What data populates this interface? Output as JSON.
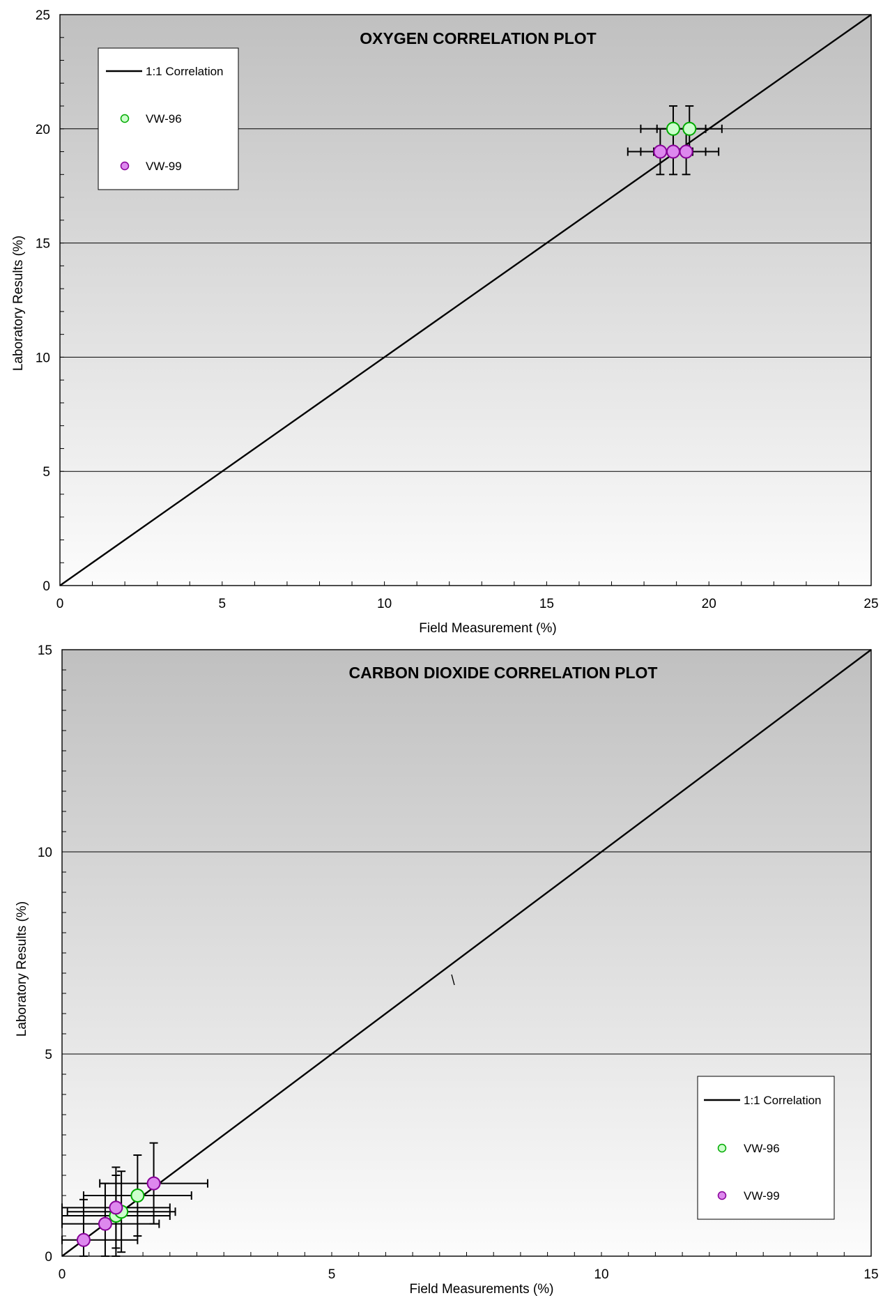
{
  "chart_data": [
    {
      "type": "scatter",
      "title": "OXYGEN CORRELATION PLOT",
      "xlabel": "Field Measurement (%)",
      "ylabel": "Laboratory Results (%)",
      "xlim": [
        0,
        25
      ],
      "ylim": [
        0,
        25
      ],
      "xticks": [
        "0",
        "5",
        "10",
        "15",
        "20",
        "25"
      ],
      "yticks": [
        "0",
        "5",
        "10",
        "15",
        "20",
        "25"
      ],
      "grid": "horizontal major lines",
      "legend_placement": "top-left",
      "legend": [
        "1:1 Correlation",
        "VW-96",
        "VW-99"
      ],
      "reference_line": {
        "name": "1:1 Correlation",
        "from": [
          0,
          0
        ],
        "to": [
          25,
          25
        ]
      },
      "series": [
        {
          "name": "VW-96",
          "color": "#ccffcc",
          "edge": "#00aa00",
          "points": [
            {
              "x": 18.9,
              "y": 20.0,
              "x_err": 1.0,
              "y_err": 1.0
            },
            {
              "x": 19.4,
              "y": 20.0,
              "x_err": 1.0,
              "y_err": 1.0
            }
          ]
        },
        {
          "name": "VW-99",
          "color": "#dd88ee",
          "edge": "#880099",
          "points": [
            {
              "x": 18.5,
              "y": 19.0,
              "x_err": 1.0,
              "y_err": 1.0
            },
            {
              "x": 18.9,
              "y": 19.0,
              "x_err": 1.0,
              "y_err": 1.0
            },
            {
              "x": 19.3,
              "y": 19.0,
              "x_err": 1.0,
              "y_err": 1.0
            }
          ]
        }
      ]
    },
    {
      "type": "scatter",
      "title": "CARBON DIOXIDE CORRELATION PLOT",
      "xlabel": "Field Measurements (%)",
      "ylabel": "Laboratory Results (%)",
      "xlim": [
        0,
        15
      ],
      "ylim": [
        0,
        15
      ],
      "xticks": [
        "0",
        "5",
        "10",
        "15"
      ],
      "yticks": [
        "0",
        "5",
        "10",
        "15"
      ],
      "grid": "horizontal major lines",
      "legend_placement": "bottom-right",
      "legend": [
        "1:1 Correlation",
        "VW-96",
        "VW-99"
      ],
      "reference_line": {
        "name": "1:1 Correlation",
        "from": [
          0,
          0
        ],
        "to": [
          15,
          15
        ]
      },
      "series": [
        {
          "name": "VW-96",
          "color": "#ccffcc",
          "edge": "#00aa00",
          "points": [
            {
              "x": 1.0,
              "y": 1.0,
              "x_err": 1.0,
              "y_err": 1.0
            },
            {
              "x": 1.1,
              "y": 1.1,
              "x_err": 1.0,
              "y_err": 1.0
            },
            {
              "x": 1.4,
              "y": 1.5,
              "x_err": 1.0,
              "y_err": 1.0
            }
          ]
        },
        {
          "name": "VW-99",
          "color": "#dd88ee",
          "edge": "#880099",
          "points": [
            {
              "x": 0.4,
              "y": 0.4,
              "x_err": 1.0,
              "y_err": 1.0
            },
            {
              "x": 0.8,
              "y": 0.8,
              "x_err": 1.0,
              "y_err": 1.0
            },
            {
              "x": 1.0,
              "y": 1.2,
              "x_err": 1.0,
              "y_err": 1.0
            },
            {
              "x": 1.7,
              "y": 1.8,
              "x_err": 1.0,
              "y_err": 1.0
            }
          ]
        }
      ]
    }
  ]
}
